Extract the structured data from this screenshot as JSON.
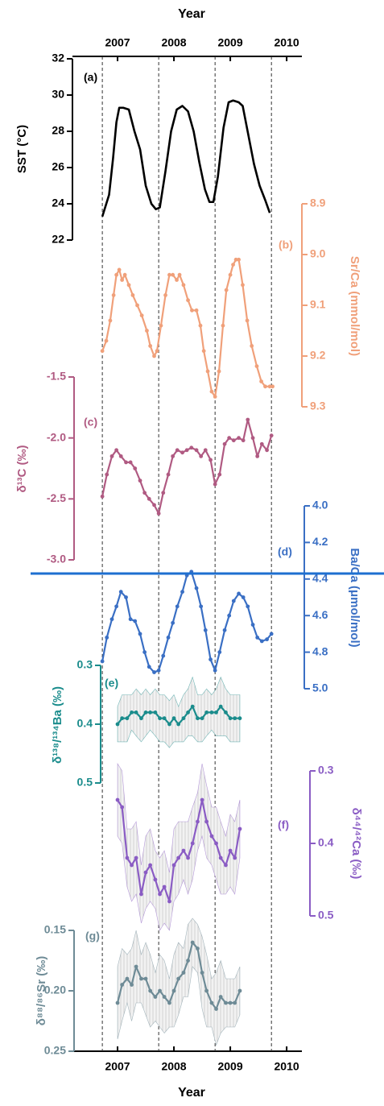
{
  "chart_data": {
    "type": "line",
    "xlabel": "Year",
    "xlim": [
      2006.2,
      2010.27
    ],
    "xticks": [
      2007,
      2008,
      2009,
      2010
    ],
    "vlines": [
      2006.73,
      2007.73,
      2008.73,
      2009.73
    ],
    "panels": [
      {
        "label": "(a)",
        "ylabel": "SST (°C)",
        "color": "#000000",
        "markers": false,
        "ylim": [
          22,
          32
        ],
        "yticks": [
          22,
          24,
          26,
          28,
          30,
          32
        ],
        "x": [
          2006.73,
          2006.8,
          2006.85,
          2006.92,
          2006.98,
          2007.03,
          2007.1,
          2007.2,
          2007.3,
          2007.4,
          2007.5,
          2007.6,
          2007.68,
          2007.75,
          2007.85,
          2007.95,
          2008.05,
          2008.15,
          2008.25,
          2008.35,
          2008.45,
          2008.55,
          2008.63,
          2008.7,
          2008.78,
          2008.88,
          2008.97,
          2009.05,
          2009.15,
          2009.22,
          2009.32,
          2009.42,
          2009.52,
          2009.62,
          2009.7
        ],
        "values": [
          23.3,
          24.0,
          24.5,
          26.5,
          28.5,
          29.3,
          29.3,
          29.2,
          28.0,
          27.0,
          25.0,
          24.0,
          23.7,
          23.8,
          25.8,
          28.0,
          29.2,
          29.4,
          29.1,
          28.0,
          26.3,
          24.8,
          24.1,
          24.1,
          25.5,
          28.2,
          29.6,
          29.7,
          29.6,
          29.4,
          27.8,
          26.2,
          25.0,
          24.2,
          23.5
        ]
      },
      {
        "label": "(b)",
        "ylabel": "Sr/Ca (mmol/mol)",
        "color": "#f0a07a",
        "markers": true,
        "ylim": [
          9.3,
          8.9
        ],
        "yticks": [
          8.9,
          {
            "value": 9,
            "label": "9.0"
          },
          9.1,
          9.2,
          9.3
        ],
        "x": [
          2006.73,
          2006.8,
          2006.87,
          2006.93,
          2006.98,
          2007.03,
          2007.08,
          2007.13,
          2007.2,
          2007.27,
          2007.35,
          2007.43,
          2007.52,
          2007.58,
          2007.65,
          2007.7,
          2007.77,
          2007.85,
          2007.92,
          2007.98,
          2008.05,
          2008.1,
          2008.17,
          2008.25,
          2008.32,
          2008.4,
          2008.47,
          2008.53,
          2008.6,
          2008.67,
          2008.73,
          2008.8,
          2008.87,
          2008.93,
          2009.0,
          2009.05,
          2009.1,
          2009.15,
          2009.22,
          2009.3,
          2009.38,
          2009.47,
          2009.55,
          2009.62,
          2009.7,
          2009.75
        ],
        "values": [
          9.19,
          9.17,
          9.13,
          9.08,
          9.04,
          9.03,
          9.05,
          9.04,
          9.06,
          9.08,
          9.1,
          9.12,
          9.15,
          9.18,
          9.2,
          9.19,
          9.14,
          9.08,
          9.04,
          9.04,
          9.05,
          9.04,
          9.06,
          9.09,
          9.11,
          9.11,
          9.14,
          9.19,
          9.23,
          9.27,
          9.28,
          9.23,
          9.14,
          9.07,
          9.04,
          9.02,
          9.01,
          9.01,
          9.06,
          9.13,
          9.18,
          9.22,
          9.25,
          9.26,
          9.26,
          9.26
        ]
      },
      {
        "label": "(c)",
        "ylabel": "δ¹³C (‰)",
        "color": "#b05a82",
        "markers": true,
        "ylim": [
          -3.0,
          -1.5
        ],
        "yticks": [
          {
            "value": -3,
            "label": "-3.0"
          },
          -2.5,
          {
            "value": -2,
            "label": "-2.0"
          },
          -1.5
        ],
        "x": [
          2006.73,
          2006.81,
          2006.9,
          2006.98,
          2007.06,
          2007.15,
          2007.23,
          2007.31,
          2007.4,
          2007.48,
          2007.56,
          2007.65,
          2007.73,
          2007.81,
          2007.9,
          2007.98,
          2008.06,
          2008.15,
          2008.23,
          2008.31,
          2008.4,
          2008.48,
          2008.56,
          2008.65,
          2008.73,
          2008.81,
          2008.9,
          2008.98,
          2009.06,
          2009.15,
          2009.23,
          2009.31,
          2009.4,
          2009.48,
          2009.56,
          2009.65,
          2009.73
        ],
        "values": [
          -2.48,
          -2.3,
          -2.15,
          -2.1,
          -2.15,
          -2.2,
          -2.2,
          -2.25,
          -2.35,
          -2.45,
          -2.5,
          -2.55,
          -2.62,
          -2.45,
          -2.3,
          -2.15,
          -2.1,
          -2.12,
          -2.1,
          -2.08,
          -2.1,
          -2.15,
          -2.1,
          -2.18,
          -2.38,
          -2.3,
          -2.05,
          -2.0,
          -2.02,
          -2.0,
          -2.02,
          -1.85,
          -2.0,
          -2.15,
          -2.05,
          -2.1,
          -1.98
        ]
      },
      {
        "label": "(d)",
        "ylabel": "Ba/Ca (μmol/mol)",
        "color": "#3a6fc4",
        "markers": true,
        "ylim": [
          5.0,
          4.0
        ],
        "yticks": [
          {
            "value": 4,
            "label": "4.0"
          },
          4.2,
          4.4,
          4.6,
          4.8,
          {
            "value": 5,
            "label": "5.0"
          }
        ],
        "x": [
          2006.73,
          2006.81,
          2006.9,
          2006.98,
          2007.06,
          2007.15,
          2007.23,
          2007.31,
          2007.4,
          2007.48,
          2007.56,
          2007.65,
          2007.73,
          2007.81,
          2007.9,
          2007.98,
          2008.06,
          2008.15,
          2008.23,
          2008.31,
          2008.4,
          2008.48,
          2008.56,
          2008.65,
          2008.73,
          2008.81,
          2008.9,
          2008.98,
          2009.06,
          2009.15,
          2009.23,
          2009.31,
          2009.4,
          2009.48,
          2009.56,
          2009.65,
          2009.73
        ],
        "values": [
          4.85,
          4.72,
          4.62,
          4.55,
          4.47,
          4.5,
          4.62,
          4.63,
          4.7,
          4.8,
          4.88,
          4.91,
          4.9,
          4.82,
          4.72,
          4.64,
          4.55,
          4.47,
          4.38,
          4.36,
          4.45,
          4.55,
          4.68,
          4.84,
          4.9,
          4.8,
          4.68,
          4.6,
          4.52,
          4.48,
          4.5,
          4.55,
          4.65,
          4.72,
          4.74,
          4.73,
          4.7
        ]
      },
      {
        "label": "(e)",
        "ylabel": "δ¹³⁸/¹³⁴Ba (‰)",
        "color": "#1a8c8c",
        "markers": true,
        "ylim": [
          0.5,
          0.3
        ],
        "yticks": [
          0.3,
          0.4,
          0.5
        ],
        "x": [
          2007.0,
          2007.08,
          2007.17,
          2007.25,
          2007.33,
          2007.42,
          2007.5,
          2007.58,
          2007.67,
          2007.75,
          2007.83,
          2007.92,
          2008.0,
          2008.08,
          2008.17,
          2008.25,
          2008.33,
          2008.42,
          2008.5,
          2008.58,
          2008.67,
          2008.75,
          2008.83,
          2008.92,
          2009.0,
          2009.08,
          2009.17
        ],
        "values": [
          0.4,
          0.39,
          0.39,
          0.38,
          0.38,
          0.39,
          0.38,
          0.38,
          0.38,
          0.39,
          0.39,
          0.4,
          0.39,
          0.4,
          0.39,
          0.38,
          0.37,
          0.39,
          0.39,
          0.38,
          0.38,
          0.38,
          0.37,
          0.38,
          0.39,
          0.39,
          0.39
        ],
        "errors": [
          0.03,
          0.04,
          0.04,
          0.03,
          0.04,
          0.04,
          0.04,
          0.03,
          0.04,
          0.04,
          0.04,
          0.04,
          0.04,
          0.03,
          0.04,
          0.04,
          0.05,
          0.04,
          0.04,
          0.04,
          0.03,
          0.04,
          0.05,
          0.04,
          0.04,
          0.04,
          0.04
        ]
      },
      {
        "label": "(f)",
        "ylabel": "δ⁴⁴/⁴²Ca (‰)",
        "color": "#8a5cc4",
        "markers": true,
        "ylim": [
          0.5,
          0.3
        ],
        "yticks": [
          0.3,
          0.4,
          0.5
        ],
        "x": [
          2007.0,
          2007.08,
          2007.17,
          2007.25,
          2007.33,
          2007.42,
          2007.5,
          2007.58,
          2007.67,
          2007.75,
          2007.83,
          2007.92,
          2008.0,
          2008.08,
          2008.17,
          2008.25,
          2008.33,
          2008.42,
          2008.5,
          2008.58,
          2008.67,
          2008.75,
          2008.83,
          2008.92,
          2009.0,
          2009.08,
          2009.17
        ],
        "values": [
          0.34,
          0.35,
          0.42,
          0.43,
          0.42,
          0.47,
          0.44,
          0.43,
          0.45,
          0.47,
          0.46,
          0.48,
          0.43,
          0.42,
          0.41,
          0.42,
          0.4,
          0.37,
          0.34,
          0.37,
          0.39,
          0.4,
          0.42,
          0.43,
          0.41,
          0.42,
          0.38
        ],
        "errors": [
          0.05,
          0.05,
          0.04,
          0.05,
          0.05,
          0.04,
          0.05,
          0.05,
          0.04,
          0.05,
          0.05,
          0.04,
          0.05,
          0.05,
          0.04,
          0.05,
          0.05,
          0.04,
          0.05,
          0.05,
          0.04,
          0.05,
          0.05,
          0.04,
          0.05,
          0.05,
          0.04
        ]
      },
      {
        "label": "(g)",
        "ylabel": "δ⁸⁸/⁸⁶Sr (‰)",
        "color": "#6e8b96",
        "markers": true,
        "ylim": [
          0.25,
          0.15
        ],
        "yticks": [
          0.15,
          {
            "value": 0.2,
            "label": "0.20"
          },
          0.25
        ],
        "x": [
          2007.0,
          2007.08,
          2007.17,
          2007.25,
          2007.33,
          2007.42,
          2007.5,
          2007.58,
          2007.67,
          2007.75,
          2007.83,
          2007.92,
          2008.0,
          2008.08,
          2008.17,
          2008.25,
          2008.33,
          2008.42,
          2008.5,
          2008.58,
          2008.67,
          2008.75,
          2008.83,
          2008.92,
          2009.0,
          2009.08,
          2009.17
        ],
        "values": [
          0.21,
          0.195,
          0.19,
          0.195,
          0.18,
          0.19,
          0.19,
          0.2,
          0.205,
          0.2,
          0.205,
          0.21,
          0.2,
          0.19,
          0.185,
          0.175,
          0.16,
          0.165,
          0.185,
          0.2,
          0.21,
          0.215,
          0.205,
          0.21,
          0.21,
          0.21,
          0.2
        ],
        "errors": [
          0.03,
          0.03,
          0.02,
          0.03,
          0.03,
          0.02,
          0.03,
          0.03,
          0.02,
          0.03,
          0.03,
          0.02,
          0.03,
          0.03,
          0.02,
          0.03,
          0.02,
          0.02,
          0.03,
          0.03,
          0.02,
          0.03,
          0.03,
          0.02,
          0.02,
          0.02,
          0.02
        ]
      }
    ]
  }
}
